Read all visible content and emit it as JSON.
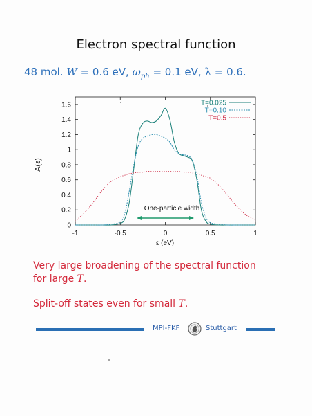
{
  "slide": {
    "title": "Electron spectral function",
    "params": {
      "prefix": "48 mol.",
      "W_sym": "W",
      "W_val": "= 0.6 eV,",
      "omega_sym": "ω",
      "omega_sub": "ph",
      "omega_val": "= 0.1 eV,",
      "lambda_sym": "λ",
      "lambda_val": "= 0.6."
    },
    "remark1": {
      "line1": "Very large broadening of the spectral function",
      "line2_prefix": "for large",
      "line2_var": "T",
      "line2_suffix": "."
    },
    "remark2": {
      "prefix": "Split-off states even for small",
      "var": "T",
      "suffix": "."
    },
    "footer": {
      "left": "MPI-FKF",
      "right": "Stuttgart",
      "logo_icon": "mpg-minerva-logo-icon"
    }
  },
  "chart_data": {
    "type": "line",
    "xlabel": "ε (eV)",
    "ylabel": "A(ε)",
    "xlim": [
      -1,
      1
    ],
    "ylim": [
      0,
      1.7
    ],
    "xticks": [
      "-1",
      "-0.5",
      "0",
      "0.5",
      "1"
    ],
    "yticks": [
      "0",
      "0.2",
      "0.4",
      "0.6",
      "0.8",
      "1",
      "1.2",
      "1.4",
      "1.6"
    ],
    "annotation": "One-particle width",
    "grid": false,
    "legend_position": "top-right",
    "x": [
      -1.0,
      -0.9,
      -0.8,
      -0.7,
      -0.6,
      -0.5,
      -0.45,
      -0.4,
      -0.35,
      -0.3,
      -0.25,
      -0.2,
      -0.15,
      -0.1,
      -0.05,
      0.0,
      0.05,
      0.1,
      0.15,
      0.2,
      0.25,
      0.3,
      0.35,
      0.4,
      0.45,
      0.5,
      0.6,
      0.7,
      0.8,
      0.9,
      1.0
    ],
    "series": [
      {
        "name": "T=0.025",
        "color": "#1a8079",
        "dash": "",
        "values": [
          0,
          0,
          0,
          0,
          0,
          0.02,
          0.08,
          0.3,
          0.75,
          1.2,
          1.35,
          1.38,
          1.36,
          1.38,
          1.45,
          1.55,
          1.4,
          1.1,
          0.95,
          0.92,
          0.9,
          0.85,
          0.6,
          0.2,
          0.05,
          0.01,
          0,
          0,
          0,
          0,
          0
        ]
      },
      {
        "name": "T=0.10",
        "color": "#2d8fb0",
        "dash": "2,1.5",
        "values": [
          0,
          0,
          0,
          0,
          0.01,
          0.04,
          0.15,
          0.45,
          0.8,
          1.05,
          1.15,
          1.18,
          1.2,
          1.2,
          1.18,
          1.15,
          1.1,
          1.0,
          0.95,
          0.93,
          0.92,
          0.86,
          0.65,
          0.3,
          0.1,
          0.03,
          0.01,
          0,
          0,
          0,
          0
        ]
      },
      {
        "name": "T=0.5",
        "color": "#d0304a",
        "dash": "1.2,2",
        "values": [
          0.05,
          0.16,
          0.3,
          0.46,
          0.58,
          0.64,
          0.66,
          0.68,
          0.69,
          0.7,
          0.7,
          0.71,
          0.71,
          0.71,
          0.71,
          0.71,
          0.71,
          0.71,
          0.71,
          0.7,
          0.7,
          0.69,
          0.68,
          0.66,
          0.64,
          0.62,
          0.52,
          0.38,
          0.24,
          0.13,
          0.07
        ]
      }
    ]
  }
}
